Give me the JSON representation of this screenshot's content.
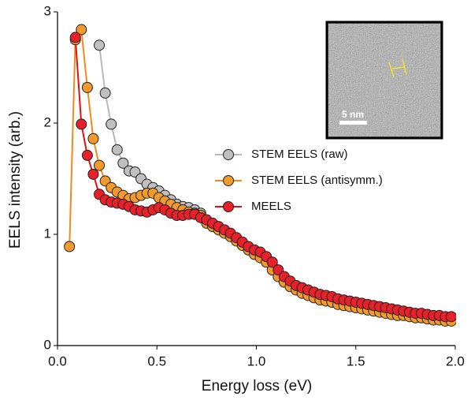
{
  "chart_data": {
    "type": "line",
    "xlabel": "Energy loss (eV)",
    "ylabel": "EELS intensity (arb.)",
    "xlim": [
      0,
      2
    ],
    "ylim": [
      0,
      3
    ],
    "xticks": [
      {
        "value": 0,
        "label": "0.0"
      },
      0.5,
      {
        "value": 1,
        "label": "1.0"
      },
      1.5,
      {
        "value": 2,
        "label": "2.0"
      }
    ],
    "yticks": [
      0,
      1,
      2,
      3
    ],
    "legend": "right",
    "x": [
      0.06,
      0.09,
      0.12,
      0.15,
      0.18,
      0.21,
      0.24,
      0.27,
      0.3,
      0.33,
      0.36,
      0.39,
      0.42,
      0.45,
      0.48,
      0.51,
      0.54,
      0.57,
      0.6,
      0.63,
      0.66,
      0.69,
      0.72,
      0.75,
      0.78,
      0.81,
      0.84,
      0.87,
      0.9,
      0.93,
      0.96,
      0.99,
      1.02,
      1.05,
      1.08,
      1.11,
      1.14,
      1.17,
      1.2,
      1.23,
      1.26,
      1.29,
      1.32,
      1.35,
      1.38,
      1.41,
      1.44,
      1.47,
      1.5,
      1.53,
      1.56,
      1.59,
      1.62,
      1.65,
      1.68,
      1.71,
      1.74,
      1.77,
      1.8,
      1.83,
      1.86,
      1.89,
      1.92,
      1.95,
      1.98
    ],
    "series": [
      {
        "name": "STEM EELS (raw)",
        "color": "#c0c0c0",
        "line_color": "#b8b8b8",
        "values": [
          null,
          null,
          null,
          null,
          null,
          2.7,
          2.27,
          1.99,
          1.76,
          1.64,
          1.57,
          1.56,
          1.5,
          1.45,
          1.42,
          1.39,
          1.35,
          1.31,
          1.27,
          1.25,
          1.24,
          1.22,
          1.19,
          1.12,
          1.09,
          1.06,
          1.03,
          1.0,
          0.96,
          0.92,
          0.88,
          0.84,
          0.82,
          0.78,
          0.72,
          0.65,
          0.6,
          0.56,
          0.52,
          0.5,
          0.48,
          0.46,
          0.44,
          0.43,
          0.42,
          0.4,
          0.39,
          0.38,
          0.37,
          0.36,
          0.35,
          0.34,
          0.33,
          0.32,
          0.31,
          0.3,
          0.29,
          0.29,
          0.28,
          0.27,
          0.26,
          0.26,
          0.25,
          0.25,
          0.24
        ]
      },
      {
        "name": "STEM EELS (antisymm.)",
        "color": "#f39a2c",
        "line_color": "#f08a1c",
        "values": [
          0.89,
          2.75,
          2.84,
          2.32,
          1.86,
          1.62,
          1.48,
          1.42,
          1.38,
          1.35,
          1.32,
          1.33,
          1.35,
          1.37,
          1.37,
          1.33,
          1.3,
          1.27,
          1.24,
          1.22,
          1.2,
          1.19,
          1.17,
          1.1,
          1.07,
          1.04,
          1.01,
          0.98,
          0.94,
          0.9,
          0.86,
          0.82,
          0.79,
          0.75,
          0.68,
          0.62,
          0.57,
          0.53,
          0.5,
          0.47,
          0.45,
          0.43,
          0.41,
          0.4,
          0.39,
          0.37,
          0.36,
          0.35,
          0.34,
          0.33,
          0.32,
          0.31,
          0.3,
          0.29,
          0.28,
          0.27,
          0.27,
          0.26,
          0.25,
          0.25,
          0.24,
          0.23,
          0.23,
          0.22,
          0.22
        ]
      },
      {
        "name": "MEELS",
        "color": "#e8202a",
        "line_color": "#e01010",
        "values": [
          null,
          2.77,
          1.99,
          1.71,
          1.54,
          1.36,
          1.31,
          1.29,
          1.28,
          1.27,
          1.25,
          1.22,
          1.21,
          1.2,
          1.22,
          1.24,
          1.22,
          1.19,
          1.17,
          1.17,
          1.18,
          1.18,
          1.15,
          1.13,
          1.1,
          1.07,
          1.04,
          1.01,
          0.97,
          0.93,
          0.89,
          0.86,
          0.84,
          0.8,
          0.75,
          0.68,
          0.62,
          0.58,
          0.54,
          0.52,
          0.5,
          0.48,
          0.46,
          0.45,
          0.44,
          0.42,
          0.41,
          0.4,
          0.39,
          0.38,
          0.37,
          0.36,
          0.35,
          0.34,
          0.33,
          0.32,
          0.31,
          0.3,
          0.29,
          0.29,
          0.28,
          0.27,
          0.27,
          0.26,
          0.26
        ]
      }
    ]
  },
  "inset": {
    "scale_label": "5 nm"
  }
}
